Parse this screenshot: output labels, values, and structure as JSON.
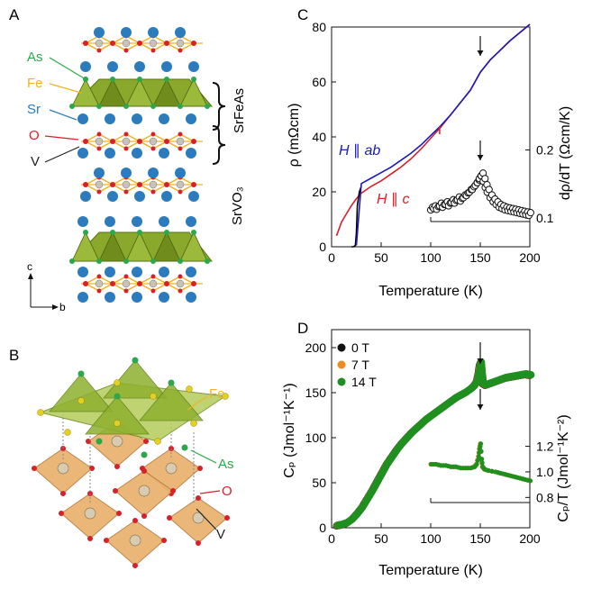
{
  "panel_labels": {
    "a": "A",
    "b": "B",
    "c": "C",
    "d": "D"
  },
  "panel_a": {
    "labels": {
      "as": "As",
      "fe": "Fe",
      "sr": "Sr",
      "o": "O",
      "v": "V",
      "compound_1": "SrFeAs",
      "compound_2": "SrVO₃",
      "axis_c": "c",
      "axis_b": "b"
    }
  },
  "panel_b": {
    "labels": {
      "fe": "Fe",
      "as": "As",
      "o": "O",
      "v": "V"
    }
  },
  "colors": {
    "as": "#2aa84a",
    "fe": "#f2b321",
    "sr": "#2b7bbd",
    "o": "#d7202a",
    "v": "#222222",
    "blue_series": "#1b1bb8",
    "red_series": "#d6202a",
    "green": "#1f8f1f",
    "orange": "#f08a1c",
    "octa": "#e9b06b",
    "layer": "#7a9a1e"
  },
  "chart_data": [
    {
      "type": "line",
      "panel": "C",
      "xlabel": "Temperature (K)",
      "ylabel": "ρ (mΩcm)",
      "xlim": [
        0,
        200
      ],
      "ylim": [
        0,
        80
      ],
      "xticks": [
        0,
        50,
        100,
        150,
        200
      ],
      "yticks": [
        0,
        20,
        40,
        60,
        80
      ],
      "series": [
        {
          "name": "H ∥ ab",
          "color": "#1b1bb8",
          "x": [
            25,
            30,
            40,
            50,
            60,
            70,
            80,
            90,
            100,
            110,
            120,
            130,
            140,
            150,
            160,
            170,
            180,
            190,
            200
          ],
          "y": [
            0.5,
            23,
            25,
            27,
            29,
            31.5,
            34,
            37,
            40.5,
            44,
            48,
            52.5,
            57,
            63.5,
            68,
            71.5,
            75,
            78,
            81
          ]
        },
        {
          "name": "H ∥ c",
          "color": "#d6202a",
          "x": [
            5,
            10,
            15,
            20,
            25,
            30,
            40,
            50,
            60,
            70,
            80,
            90,
            100,
            110,
            120,
            130,
            140,
            150,
            160,
            170,
            180,
            190,
            200
          ],
          "y": [
            4,
            9,
            12,
            15,
            17.5,
            19.5,
            22,
            24,
            26.5,
            29,
            32,
            35.5,
            39.5,
            43.5,
            48,
            52.5,
            57,
            63.5,
            68,
            71.5,
            75,
            78,
            81
          ]
        },
        {
          "name": "",
          "color": "#000000",
          "x": [
            20,
            22,
            24,
            25,
            26,
            28,
            30
          ],
          "y": [
            0,
            0,
            0.5,
            5,
            15,
            20,
            22
          ]
        }
      ],
      "inset": {
        "ylabel": "dρ/dT (Ωcm/K)",
        "yticks": [
          0.1,
          0.2
        ],
        "ylim": [
          0.095,
          0.235
        ],
        "xlim": [
          100,
          200
        ],
        "x": [
          100,
          103,
          106,
          109,
          112,
          115,
          118,
          121,
          124,
          127,
          130,
          133,
          136,
          139,
          142,
          145,
          147,
          149,
          151,
          153,
          155,
          157,
          160,
          163,
          166,
          169,
          172,
          175,
          178,
          181,
          184,
          187,
          190,
          193,
          196,
          199
        ],
        "y": [
          0.112,
          0.114,
          0.113,
          0.118,
          0.116,
          0.12,
          0.118,
          0.123,
          0.122,
          0.127,
          0.125,
          0.13,
          0.133,
          0.138,
          0.142,
          0.148,
          0.152,
          0.158,
          0.162,
          0.154,
          0.145,
          0.138,
          0.13,
          0.124,
          0.12,
          0.116,
          0.114,
          0.112,
          0.111,
          0.11,
          0.109,
          0.108,
          0.107,
          0.106,
          0.105,
          0.104
        ]
      },
      "annotations": {
        "ab_label": "H ∥ ab",
        "c_label": "H ∥ c"
      },
      "arrows_at_x": [
        150
      ]
    },
    {
      "type": "scatter",
      "panel": "D",
      "xlabel": "Temperature (K)",
      "ylabel": "Cₚ (Jmol⁻¹K⁻¹)",
      "xlim": [
        0,
        200
      ],
      "ylim": [
        0,
        220
      ],
      "xticks": [
        0,
        50,
        100,
        150,
        200
      ],
      "yticks": [
        0,
        50,
        100,
        150,
        200
      ],
      "legend": "top-left",
      "series": [
        {
          "name": "0 T",
          "color": "#111111"
        },
        {
          "name": "7 T",
          "color": "#f08a1c"
        },
        {
          "name": "14 T",
          "color": "#1f8f1f"
        }
      ],
      "x": [
        5,
        10,
        15,
        20,
        25,
        30,
        35,
        40,
        45,
        50,
        55,
        60,
        65,
        70,
        75,
        80,
        85,
        90,
        95,
        100,
        105,
        110,
        115,
        120,
        125,
        130,
        135,
        140,
        143,
        146,
        148,
        149,
        150,
        151,
        152,
        155,
        160,
        165,
        170,
        175,
        180,
        185,
        190,
        195,
        200
      ],
      "y": [
        2,
        3,
        5,
        9,
        15,
        22,
        31,
        40,
        50,
        60,
        70,
        78,
        86,
        93,
        99,
        105,
        110,
        115,
        120,
        124,
        128,
        132,
        136,
        140,
        144,
        147,
        150,
        154,
        157,
        162,
        172,
        180,
        183,
        170,
        160,
        158,
        160,
        162,
        164,
        166,
        167,
        168,
        169,
        170,
        169
      ],
      "inset": {
        "ylabel": "Cₚ/T (Jmol⁻¹K⁻²)",
        "yticks": [
          0.8,
          1.0,
          1.2
        ],
        "ylim": [
          0.76,
          1.38
        ],
        "xlim": [
          100,
          200
        ],
        "x": [
          100,
          105,
          110,
          115,
          120,
          125,
          130,
          135,
          140,
          144,
          146,
          148,
          149,
          150,
          151,
          152,
          154,
          158,
          165,
          170,
          175,
          180,
          185,
          190,
          195,
          200
        ],
        "y": [
          1.06,
          1.06,
          1.05,
          1.05,
          1.04,
          1.04,
          1.03,
          1.03,
          1.03,
          1.04,
          1.06,
          1.12,
          1.18,
          1.22,
          1.1,
          1.04,
          1.02,
          1.01,
          1.0,
          0.99,
          0.98,
          0.97,
          0.96,
          0.95,
          0.94,
          0.93
        ]
      },
      "arrows_at_x": [
        150
      ]
    }
  ]
}
